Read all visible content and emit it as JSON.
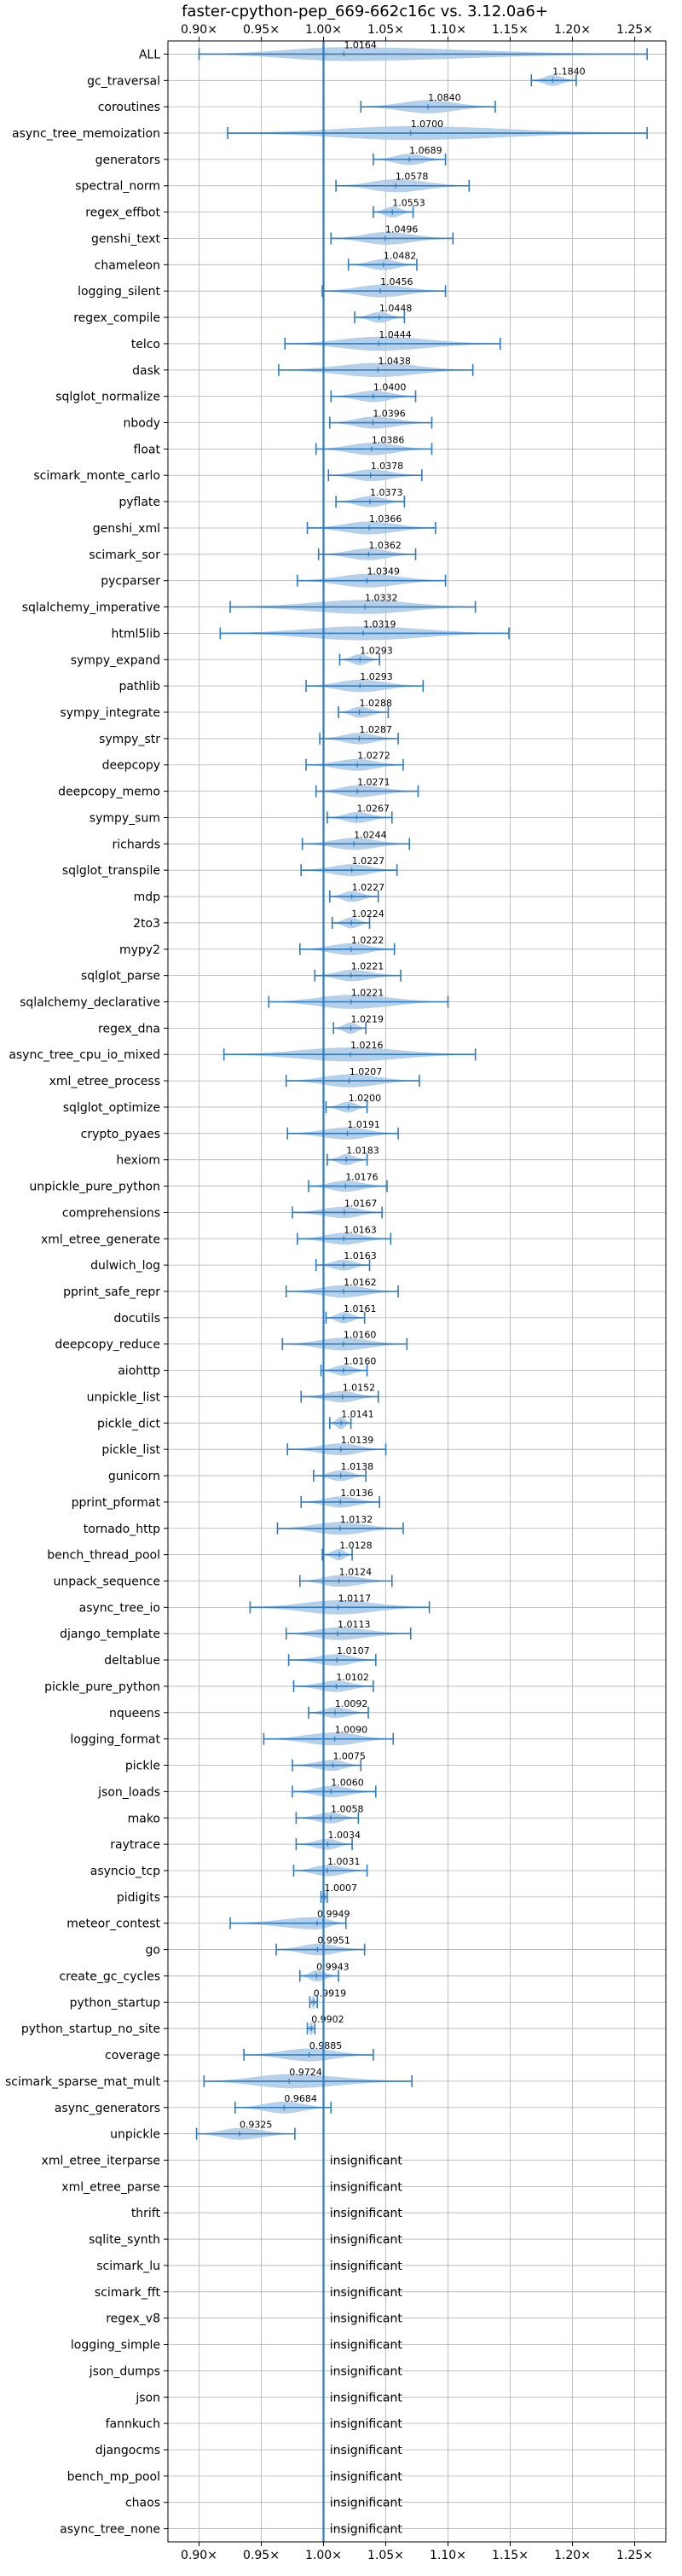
{
  "chart_data": {
    "type": "violin",
    "title": "faster-cpython-pep_669-662c16c vs. 3.12.0a6+",
    "xlim": [
      0.875,
      1.275
    ],
    "x_ticks": [
      0.9,
      0.95,
      1.0,
      1.05,
      1.1,
      1.15,
      1.2,
      1.25
    ],
    "x_tick_labels": [
      "0.90×",
      "0.95×",
      "1.00×",
      "1.05×",
      "1.10×",
      "1.15×",
      "1.20×",
      "1.25×"
    ],
    "reference_line": 1.0,
    "grid": true,
    "insignificant_label": "insignificant",
    "benchmarks": [
      {
        "name": "ALL",
        "value": 1.0164,
        "label": "1.0164",
        "min": 0.9,
        "max": 1.26
      },
      {
        "name": "gc_traversal",
        "value": 1.184,
        "label": "1.1840",
        "min": 1.167,
        "max": 1.203
      },
      {
        "name": "coroutines",
        "value": 1.084,
        "label": "1.0840",
        "min": 1.03,
        "max": 1.138
      },
      {
        "name": "async_tree_memoization",
        "value": 1.07,
        "label": "1.0700",
        "min": 0.923,
        "max": 1.26
      },
      {
        "name": "generators",
        "value": 1.0689,
        "label": "1.0689",
        "min": 1.04,
        "max": 1.098
      },
      {
        "name": "spectral_norm",
        "value": 1.0578,
        "label": "1.0578",
        "min": 1.01,
        "max": 1.117
      },
      {
        "name": "regex_effbot",
        "value": 1.0553,
        "label": "1.0553",
        "min": 1.04,
        "max": 1.072
      },
      {
        "name": "genshi_text",
        "value": 1.0496,
        "label": "1.0496",
        "min": 1.006,
        "max": 1.104
      },
      {
        "name": "chameleon",
        "value": 1.0482,
        "label": "1.0482",
        "min": 1.02,
        "max": 1.075
      },
      {
        "name": "logging_silent",
        "value": 1.0456,
        "label": "1.0456",
        "min": 0.999,
        "max": 1.098
      },
      {
        "name": "regex_compile",
        "value": 1.0448,
        "label": "1.0448",
        "min": 1.025,
        "max": 1.065
      },
      {
        "name": "telco",
        "value": 1.0444,
        "label": "1.0444",
        "min": 0.969,
        "max": 1.142
      },
      {
        "name": "dask",
        "value": 1.0438,
        "label": "1.0438",
        "min": 0.964,
        "max": 1.12
      },
      {
        "name": "sqlglot_normalize",
        "value": 1.04,
        "label": "1.0400",
        "min": 1.006,
        "max": 1.074
      },
      {
        "name": "nbody",
        "value": 1.0396,
        "label": "1.0396",
        "min": 1.005,
        "max": 1.087
      },
      {
        "name": "float",
        "value": 1.0386,
        "label": "1.0386",
        "min": 0.994,
        "max": 1.087
      },
      {
        "name": "scimark_monte_carlo",
        "value": 1.0378,
        "label": "1.0378",
        "min": 1.004,
        "max": 1.079
      },
      {
        "name": "pyflate",
        "value": 1.0373,
        "label": "1.0373",
        "min": 1.01,
        "max": 1.065
      },
      {
        "name": "genshi_xml",
        "value": 1.0366,
        "label": "1.0366",
        "min": 0.987,
        "max": 1.09
      },
      {
        "name": "scimark_sor",
        "value": 1.0362,
        "label": "1.0362",
        "min": 0.996,
        "max": 1.074
      },
      {
        "name": "pycparser",
        "value": 1.0349,
        "label": "1.0349",
        "min": 0.979,
        "max": 1.098
      },
      {
        "name": "sqlalchemy_imperative",
        "value": 1.0332,
        "label": "1.0332",
        "min": 0.925,
        "max": 1.122
      },
      {
        "name": "html5lib",
        "value": 1.0319,
        "label": "1.0319",
        "min": 0.917,
        "max": 1.149
      },
      {
        "name": "sympy_expand",
        "value": 1.0293,
        "label": "1.0293",
        "min": 1.013,
        "max": 1.045
      },
      {
        "name": "pathlib",
        "value": 1.0293,
        "label": "1.0293",
        "min": 0.986,
        "max": 1.08
      },
      {
        "name": "sympy_integrate",
        "value": 1.0288,
        "label": "1.0288",
        "min": 1.012,
        "max": 1.052
      },
      {
        "name": "sympy_str",
        "value": 1.0287,
        "label": "1.0287",
        "min": 0.997,
        "max": 1.06
      },
      {
        "name": "deepcopy",
        "value": 1.0272,
        "label": "1.0272",
        "min": 0.986,
        "max": 1.064
      },
      {
        "name": "deepcopy_memo",
        "value": 1.0271,
        "label": "1.0271",
        "min": 0.994,
        "max": 1.076
      },
      {
        "name": "sympy_sum",
        "value": 1.0267,
        "label": "1.0267",
        "min": 1.003,
        "max": 1.055
      },
      {
        "name": "richards",
        "value": 1.0244,
        "label": "1.0244",
        "min": 0.983,
        "max": 1.069
      },
      {
        "name": "sqlglot_transpile",
        "value": 1.0227,
        "label": "1.0227",
        "min": 0.982,
        "max": 1.059
      },
      {
        "name": "mdp",
        "value": 1.0227,
        "label": "1.0227",
        "min": 1.005,
        "max": 1.044
      },
      {
        "name": "2to3",
        "value": 1.0224,
        "label": "1.0224",
        "min": 1.007,
        "max": 1.037
      },
      {
        "name": "mypy2",
        "value": 1.0222,
        "label": "1.0222",
        "min": 0.981,
        "max": 1.057
      },
      {
        "name": "sqlglot_parse",
        "value": 1.0221,
        "label": "1.0221",
        "min": 0.993,
        "max": 1.062
      },
      {
        "name": "sqlalchemy_declarative",
        "value": 1.0221,
        "label": "1.0221",
        "min": 0.956,
        "max": 1.1
      },
      {
        "name": "regex_dna",
        "value": 1.0219,
        "label": "1.0219",
        "min": 1.008,
        "max": 1.034
      },
      {
        "name": "async_tree_cpu_io_mixed",
        "value": 1.0216,
        "label": "1.0216",
        "min": 0.92,
        "max": 1.122
      },
      {
        "name": "xml_etree_process",
        "value": 1.0207,
        "label": "1.0207",
        "min": 0.97,
        "max": 1.077
      },
      {
        "name": "sqlglot_optimize",
        "value": 1.02,
        "label": "1.0200",
        "min": 1.002,
        "max": 1.035
      },
      {
        "name": "crypto_pyaes",
        "value": 1.0191,
        "label": "1.0191",
        "min": 0.971,
        "max": 1.06
      },
      {
        "name": "hexiom",
        "value": 1.0183,
        "label": "1.0183",
        "min": 1.003,
        "max": 1.035
      },
      {
        "name": "unpickle_pure_python",
        "value": 1.0176,
        "label": "1.0176",
        "min": 0.988,
        "max": 1.051
      },
      {
        "name": "comprehensions",
        "value": 1.0167,
        "label": "1.0167",
        "min": 0.975,
        "max": 1.047
      },
      {
        "name": "xml_etree_generate",
        "value": 1.0163,
        "label": "1.0163",
        "min": 0.979,
        "max": 1.054
      },
      {
        "name": "dulwich_log",
        "value": 1.0163,
        "label": "1.0163",
        "min": 0.994,
        "max": 1.037
      },
      {
        "name": "pprint_safe_repr",
        "value": 1.0162,
        "label": "1.0162",
        "min": 0.97,
        "max": 1.06
      },
      {
        "name": "docutils",
        "value": 1.0161,
        "label": "1.0161",
        "min": 1.002,
        "max": 1.033
      },
      {
        "name": "deepcopy_reduce",
        "value": 1.016,
        "label": "1.0160",
        "min": 0.967,
        "max": 1.067
      },
      {
        "name": "aiohttp",
        "value": 1.016,
        "label": "1.0160",
        "min": 0.998,
        "max": 1.035
      },
      {
        "name": "unpickle_list",
        "value": 1.0152,
        "label": "1.0152",
        "min": 0.982,
        "max": 1.044
      },
      {
        "name": "pickle_dict",
        "value": 1.0141,
        "label": "1.0141",
        "min": 1.005,
        "max": 1.022
      },
      {
        "name": "pickle_list",
        "value": 1.0139,
        "label": "1.0139",
        "min": 0.971,
        "max": 1.05
      },
      {
        "name": "gunicorn",
        "value": 1.0138,
        "label": "1.0138",
        "min": 0.992,
        "max": 1.034
      },
      {
        "name": "pprint_pformat",
        "value": 1.0136,
        "label": "1.0136",
        "min": 0.982,
        "max": 1.045
      },
      {
        "name": "tornado_http",
        "value": 1.0132,
        "label": "1.0132",
        "min": 0.963,
        "max": 1.064
      },
      {
        "name": "bench_thread_pool",
        "value": 1.0128,
        "label": "1.0128",
        "min": 0.999,
        "max": 1.023
      },
      {
        "name": "unpack_sequence",
        "value": 1.0124,
        "label": "1.0124",
        "min": 0.981,
        "max": 1.055
      },
      {
        "name": "async_tree_io",
        "value": 1.0117,
        "label": "1.0117",
        "min": 0.941,
        "max": 1.085
      },
      {
        "name": "django_template",
        "value": 1.0113,
        "label": "1.0113",
        "min": 0.97,
        "max": 1.07
      },
      {
        "name": "deltablue",
        "value": 1.0107,
        "label": "1.0107",
        "min": 0.972,
        "max": 1.042
      },
      {
        "name": "pickle_pure_python",
        "value": 1.0102,
        "label": "1.0102",
        "min": 0.976,
        "max": 1.04
      },
      {
        "name": "nqueens",
        "value": 1.0092,
        "label": "1.0092",
        "min": 0.988,
        "max": 1.036
      },
      {
        "name": "logging_format",
        "value": 1.009,
        "label": "1.0090",
        "min": 0.952,
        "max": 1.056
      },
      {
        "name": "pickle",
        "value": 1.0075,
        "label": "1.0075",
        "min": 0.975,
        "max": 1.03
      },
      {
        "name": "json_loads",
        "value": 1.006,
        "label": "1.0060",
        "min": 0.975,
        "max": 1.042
      },
      {
        "name": "mako",
        "value": 1.0058,
        "label": "1.0058",
        "min": 0.978,
        "max": 1.028
      },
      {
        "name": "raytrace",
        "value": 1.0034,
        "label": "1.0034",
        "min": 0.978,
        "max": 1.023
      },
      {
        "name": "asyncio_tcp",
        "value": 1.0031,
        "label": "1.0031",
        "min": 0.976,
        "max": 1.035
      },
      {
        "name": "pidigits",
        "value": 1.0007,
        "label": "1.0007",
        "min": 0.998,
        "max": 1.003
      },
      {
        "name": "meteor_contest",
        "value": 0.9949,
        "label": "0.9949",
        "min": 0.925,
        "max": 1.018
      },
      {
        "name": "go",
        "value": 0.9951,
        "label": "0.9951",
        "min": 0.962,
        "max": 1.033
      },
      {
        "name": "create_gc_cycles",
        "value": 0.9943,
        "label": "0.9943",
        "min": 0.981,
        "max": 1.012
      },
      {
        "name": "python_startup",
        "value": 0.9919,
        "label": "0.9919",
        "min": 0.989,
        "max": 0.995
      },
      {
        "name": "python_startup_no_site",
        "value": 0.9902,
        "label": "0.9902",
        "min": 0.987,
        "max": 0.993
      },
      {
        "name": "coverage",
        "value": 0.9885,
        "label": "0.9885",
        "min": 0.936,
        "max": 1.04
      },
      {
        "name": "scimark_sparse_mat_mult",
        "value": 0.9724,
        "label": "0.9724",
        "min": 0.904,
        "max": 1.071
      },
      {
        "name": "async_generators",
        "value": 0.9684,
        "label": "0.9684",
        "min": 0.929,
        "max": 1.006
      },
      {
        "name": "unpickle",
        "value": 0.9325,
        "label": "0.9325",
        "min": 0.898,
        "max": 0.977
      },
      {
        "name": "xml_etree_iterparse",
        "value": null,
        "label": "insignificant"
      },
      {
        "name": "xml_etree_parse",
        "value": null,
        "label": "insignificant"
      },
      {
        "name": "thrift",
        "value": null,
        "label": "insignificant"
      },
      {
        "name": "sqlite_synth",
        "value": null,
        "label": "insignificant"
      },
      {
        "name": "scimark_lu",
        "value": null,
        "label": "insignificant"
      },
      {
        "name": "scimark_fft",
        "value": null,
        "label": "insignificant"
      },
      {
        "name": "regex_v8",
        "value": null,
        "label": "insignificant"
      },
      {
        "name": "logging_simple",
        "value": null,
        "label": "insignificant"
      },
      {
        "name": "json_dumps",
        "value": null,
        "label": "insignificant"
      },
      {
        "name": "json",
        "value": null,
        "label": "insignificant"
      },
      {
        "name": "fannkuch",
        "value": null,
        "label": "insignificant"
      },
      {
        "name": "djangocms",
        "value": null,
        "label": "insignificant"
      },
      {
        "name": "bench_mp_pool",
        "value": null,
        "label": "insignificant"
      },
      {
        "name": "chaos",
        "value": null,
        "label": "insignificant"
      },
      {
        "name": "async_tree_none",
        "value": null,
        "label": "insignificant"
      }
    ],
    "colors": {
      "violin_fill": "#a9c8e6",
      "line": "#2f7bbf",
      "grid": "#b0b0b0",
      "axis": "#000000"
    }
  }
}
